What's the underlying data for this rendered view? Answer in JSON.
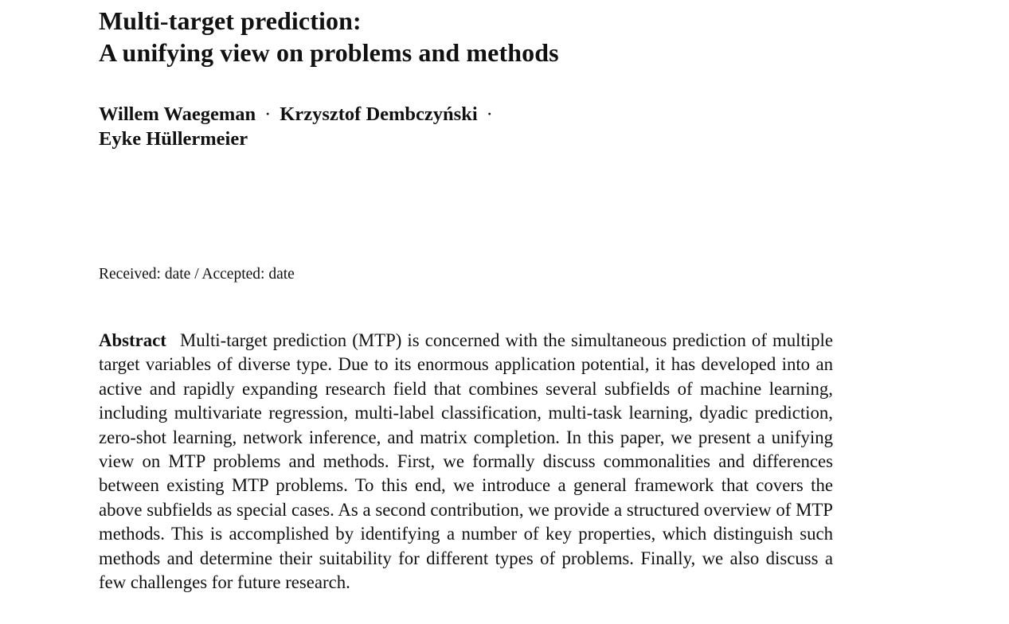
{
  "paper": {
    "title_line1": "Multi-target prediction:",
    "title_line2": "A unifying view on problems and methods",
    "authors": [
      "Willem Waegeman",
      "Krzysztof Dembczyński",
      "Eyke Hüllermeier"
    ],
    "author_separator": "·",
    "received": "Received: date / Accepted: date",
    "abstract_heading": "Abstract",
    "abstract_text": "Multi-target prediction (MTP) is concerned with the simultaneous prediction of multiple target variables of diverse type. Due to its enormous application potential, it has developed into an active and rapidly expanding research field that combines several subfields of machine learning, including multivariate regression, multi-label classification, multi-task learning, dyadic prediction, zero-shot learning, network inference, and matrix completion. In this paper, we present a unifying view on MTP problems and methods. First, we formally discuss commonalities and differences between existing MTP problems. To this end, we introduce a general framework that covers the above subfields as special cases. As a second contribution, we provide a structured overview of MTP methods. This is accomplished by identifying a number of key properties, which distinguish such methods and determine their suitability for different types of problems. Finally, we also discuss a few challenges for future research."
  }
}
